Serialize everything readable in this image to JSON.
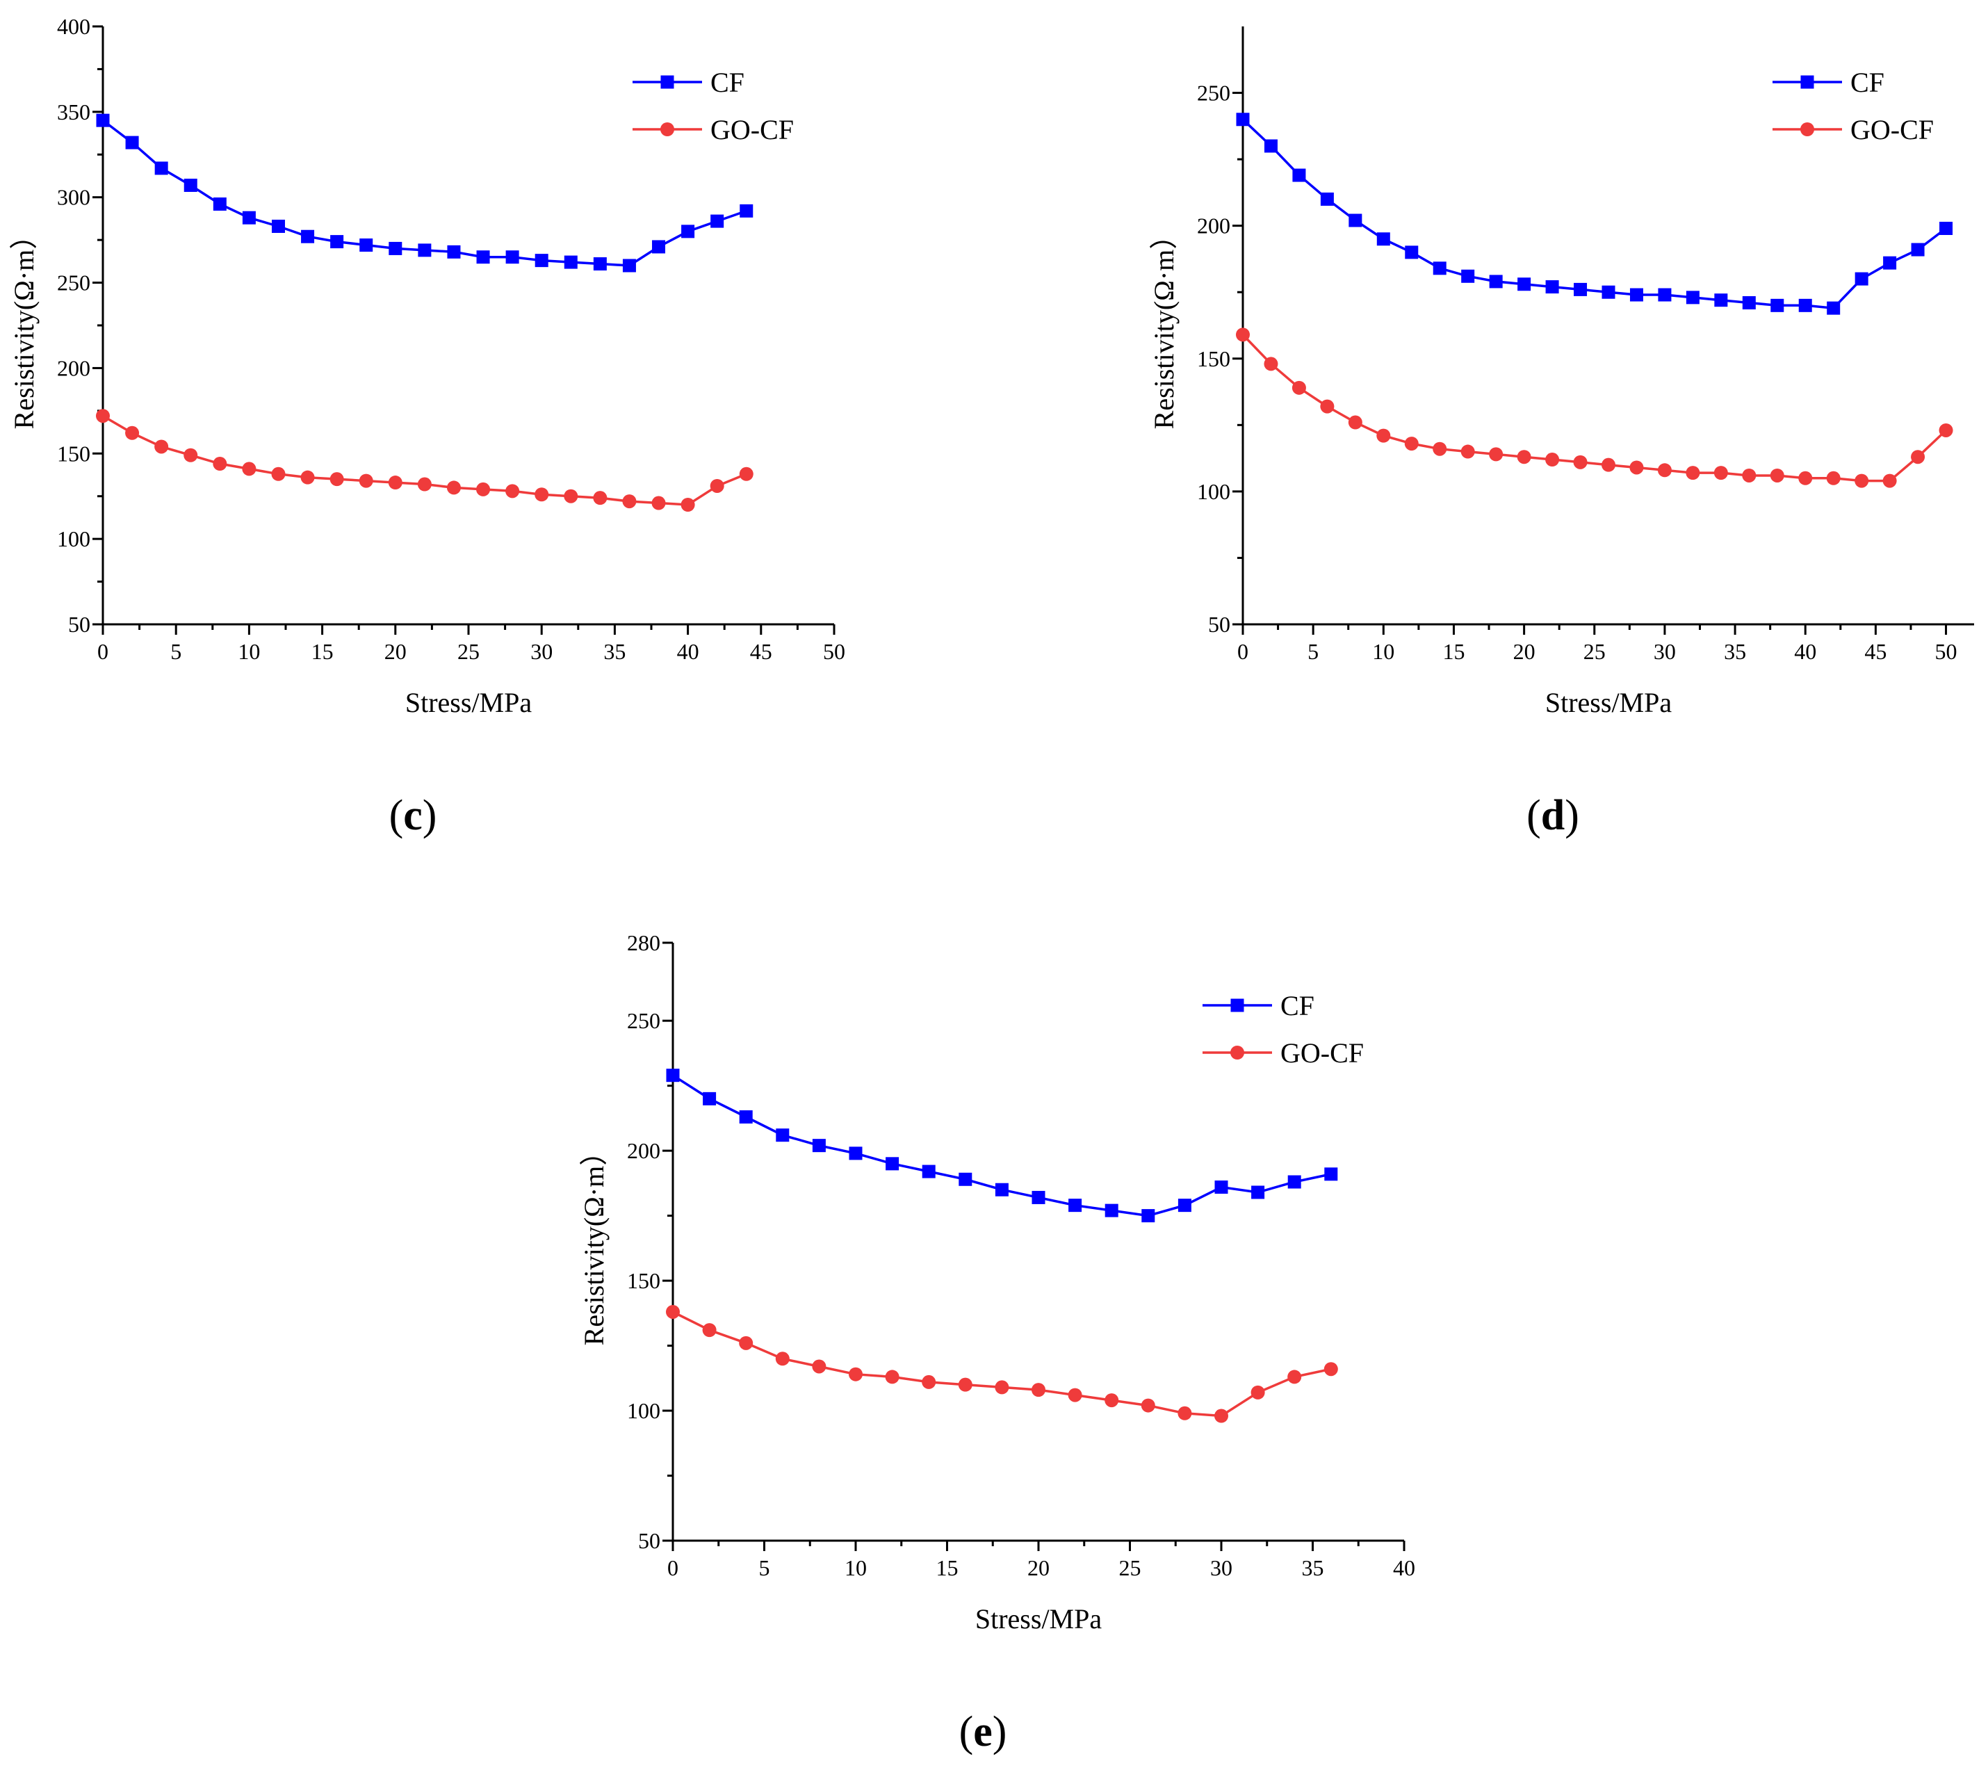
{
  "chart_data": [
    {
      "id": "c",
      "type": "line",
      "panel_label": "c",
      "xlabel": "Stress/MPa",
      "ylabel": "Resistivity(Ω·m）",
      "xlim": [
        0,
        50
      ],
      "ylim": [
        50,
        400
      ],
      "xticks": [
        0,
        5,
        10,
        15,
        20,
        25,
        30,
        35,
        40,
        45,
        50
      ],
      "yticks": [
        50,
        100,
        150,
        200,
        250,
        300,
        350,
        400
      ],
      "legend_position": "top-right",
      "series": [
        {
          "name": "CF",
          "marker": "square",
          "color": "#0000ff",
          "x": [
            0,
            2,
            4,
            6,
            8,
            10,
            12,
            14,
            16,
            18,
            20,
            22,
            24,
            26,
            28,
            30,
            32,
            34,
            36,
            38,
            40,
            42,
            44
          ],
          "y": [
            345,
            332,
            317,
            307,
            296,
            288,
            283,
            277,
            274,
            272,
            270,
            269,
            268,
            265,
            265,
            263,
            262,
            261,
            260,
            271,
            280,
            286,
            292
          ]
        },
        {
          "name": "GO-CF",
          "marker": "circle",
          "color": "#ef3b3b",
          "x": [
            0,
            2,
            4,
            6,
            8,
            10,
            12,
            14,
            16,
            18,
            20,
            22,
            24,
            26,
            28,
            30,
            32,
            34,
            36,
            38,
            40,
            42,
            44
          ],
          "y": [
            172,
            162,
            154,
            149,
            144,
            141,
            138,
            136,
            135,
            134,
            133,
            132,
            130,
            129,
            128,
            126,
            125,
            124,
            122,
            121,
            120,
            131,
            138
          ]
        }
      ]
    },
    {
      "id": "d",
      "type": "line",
      "panel_label": "d",
      "xlabel": "Stress/MPa",
      "ylabel": "Resistivity(Ω·m）",
      "xlim": [
        0,
        52
      ],
      "ylim": [
        50,
        275
      ],
      "xticks": [
        0,
        5,
        10,
        15,
        20,
        25,
        30,
        35,
        40,
        45,
        50
      ],
      "yticks": [
        50,
        100,
        150,
        200,
        250
      ],
      "legend_position": "top-right",
      "series": [
        {
          "name": "CF",
          "marker": "square",
          "color": "#0000ff",
          "x": [
            0,
            2,
            4,
            6,
            8,
            10,
            12,
            14,
            16,
            18,
            20,
            22,
            24,
            26,
            28,
            30,
            32,
            34,
            36,
            38,
            40,
            42,
            44,
            46,
            48,
            50
          ],
          "y": [
            240,
            230,
            219,
            210,
            202,
            195,
            190,
            184,
            181,
            179,
            178,
            177,
            176,
            175,
            174,
            174,
            173,
            172,
            171,
            170,
            170,
            169,
            180,
            186,
            191,
            199
          ]
        },
        {
          "name": "GO-CF",
          "marker": "circle",
          "color": "#ef3b3b",
          "x": [
            0,
            2,
            4,
            6,
            8,
            10,
            12,
            14,
            16,
            18,
            20,
            22,
            24,
            26,
            28,
            30,
            32,
            34,
            36,
            38,
            40,
            42,
            44,
            46,
            48,
            50
          ],
          "y": [
            159,
            148,
            139,
            132,
            126,
            121,
            118,
            116,
            115,
            114,
            113,
            112,
            111,
            110,
            109,
            108,
            107,
            107,
            106,
            106,
            105,
            105,
            104,
            104,
            113,
            123
          ]
        }
      ]
    },
    {
      "id": "e",
      "type": "line",
      "panel_label": "e",
      "xlabel": "Stress/MPa",
      "ylabel": "Resistivity(Ω·m）",
      "xlim": [
        0,
        40
      ],
      "ylim": [
        50,
        280
      ],
      "xticks": [
        0,
        5,
        10,
        15,
        20,
        25,
        30,
        35,
        40
      ],
      "yticks": [
        50,
        100,
        150,
        200,
        250,
        280
      ],
      "legend_position": "top-right",
      "series": [
        {
          "name": "CF",
          "marker": "square",
          "color": "#0000ff",
          "x": [
            0,
            2,
            4,
            6,
            8,
            10,
            12,
            14,
            16,
            18,
            20,
            22,
            24,
            26,
            28,
            30,
            32,
            34,
            36
          ],
          "y": [
            229,
            220,
            213,
            206,
            202,
            199,
            195,
            192,
            189,
            185,
            182,
            179,
            177,
            175,
            179,
            186,
            184,
            188,
            191
          ]
        },
        {
          "name": "GO-CF",
          "marker": "circle",
          "color": "#ef3b3b",
          "x": [
            0,
            2,
            4,
            6,
            8,
            10,
            12,
            14,
            16,
            18,
            20,
            22,
            24,
            26,
            28,
            30,
            32,
            34,
            36
          ],
          "y": [
            138,
            131,
            126,
            120,
            117,
            114,
            113,
            111,
            110,
            109,
            108,
            106,
            104,
            102,
            99,
            98,
            107,
            113,
            116
          ]
        }
      ]
    }
  ]
}
